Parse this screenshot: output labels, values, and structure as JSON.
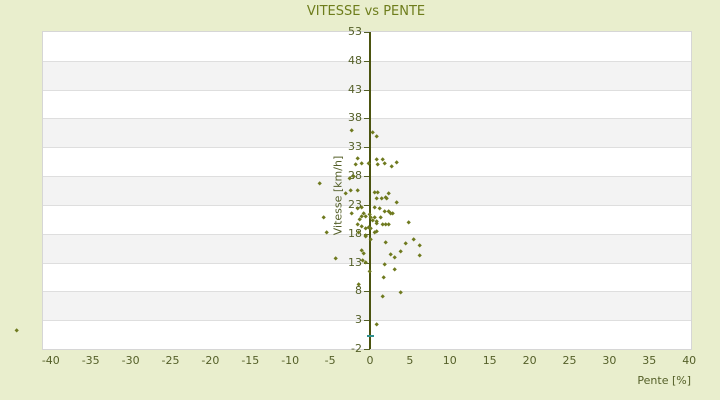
{
  "title": "VITESSE vs PENTE",
  "colors": {
    "page_background": "#e9eecd",
    "title": "#6e7d1c",
    "tick_labels": "#545f28",
    "points": "#6f7a1f",
    "axis_line": "#4b530f",
    "band_alternate": "#f3f3f3",
    "gridline": "#dedede",
    "plot_border": "#d6d6d6",
    "zero_tick": "#2f8f8f"
  },
  "chart_data": {
    "type": "scatter",
    "title": "VITESSE vs PENTE",
    "xlabel": "Pente [%]",
    "ylabel": "Vitesse [km/h]",
    "xlim": [
      -41,
      41
    ],
    "ylim": [
      -2,
      53
    ],
    "x_ticks": [
      -40,
      -35,
      -30,
      -25,
      -20,
      -15,
      -10,
      -5,
      0,
      5,
      10,
      15,
      20,
      25,
      30,
      35,
      40
    ],
    "y_ticks": [
      53,
      48,
      43,
      38,
      33,
      28,
      23,
      18,
      13,
      8,
      3,
      -2
    ],
    "grid": "horizontal alternating bands every 5 units",
    "legend_position": "none",
    "vertical_axis_at_x": 0,
    "zero_marker": {
      "x": 0,
      "y": 0.3
    },
    "series": [
      {
        "name": "vitesse-pente-points",
        "marker": "diamond",
        "points": [
          [
            -2.3,
            35.9
          ],
          [
            0.3,
            35.5
          ],
          [
            0.9,
            34.8
          ],
          [
            -1.6,
            31.0
          ],
          [
            -1.8,
            30.0
          ],
          [
            -1.0,
            30.1
          ],
          [
            -0.2,
            30.2
          ],
          [
            0.9,
            30.9
          ],
          [
            1.6,
            30.9
          ],
          [
            1.0,
            30.0
          ],
          [
            1.9,
            30.1
          ],
          [
            2.7,
            29.6
          ],
          [
            3.4,
            30.4
          ],
          [
            -6.3,
            26.6
          ],
          [
            -2.6,
            27.6
          ],
          [
            -2.1,
            27.9
          ],
          [
            -3.0,
            25.0
          ],
          [
            -2.4,
            25.4
          ],
          [
            -1.5,
            25.5
          ],
          [
            0.6,
            25.2
          ],
          [
            1.0,
            25.2
          ],
          [
            2.3,
            25.0
          ],
          [
            2.1,
            24.1
          ],
          [
            0.9,
            24.0
          ],
          [
            1.5,
            24.0
          ],
          [
            2.0,
            24.3
          ],
          [
            3.3,
            23.3
          ],
          [
            -1.5,
            22.4
          ],
          [
            -1.1,
            22.6
          ],
          [
            0.6,
            22.6
          ],
          [
            1.2,
            22.4
          ],
          [
            1.8,
            21.9
          ],
          [
            2.3,
            21.9
          ],
          [
            2.8,
            21.5
          ],
          [
            -2.3,
            21.5
          ],
          [
            -1.1,
            21.0
          ],
          [
            -0.8,
            21.4
          ],
          [
            -0.5,
            21.0
          ],
          [
            -0.1,
            21.3
          ],
          [
            0.3,
            20.3
          ],
          [
            0.1,
            20.7
          ],
          [
            0.6,
            20.8
          ],
          [
            0.9,
            20.1
          ],
          [
            1.3,
            20.7
          ],
          [
            2.6,
            21.4
          ],
          [
            -5.8,
            20.7
          ],
          [
            -1.3,
            20.5
          ],
          [
            2.0,
            19.6
          ],
          [
            4.8,
            19.9
          ],
          [
            -1.5,
            19.6
          ],
          [
            -1.1,
            19.3
          ],
          [
            -0.2,
            19.1
          ],
          [
            0.8,
            19.8
          ],
          [
            1.6,
            19.5
          ],
          [
            2.3,
            19.5
          ],
          [
            -5.4,
            18.1
          ],
          [
            -1.4,
            18.2
          ],
          [
            -0.5,
            18.9
          ],
          [
            0.1,
            18.8
          ],
          [
            -0.6,
            17.7
          ],
          [
            0.8,
            18.4
          ],
          [
            0.6,
            18.1
          ],
          [
            -0.5,
            17.4
          ],
          [
            0.1,
            17.0
          ],
          [
            5.5,
            17.0
          ],
          [
            2.0,
            16.4
          ],
          [
            4.5,
            16.2
          ],
          [
            6.2,
            16.0
          ],
          [
            -1.1,
            15.1
          ],
          [
            -0.8,
            14.6
          ],
          [
            2.6,
            14.4
          ],
          [
            3.9,
            14.8
          ],
          [
            6.2,
            14.2
          ],
          [
            3.1,
            13.9
          ],
          [
            -4.3,
            13.6
          ],
          [
            -0.9,
            13.4
          ],
          [
            -0.6,
            12.9
          ],
          [
            1.8,
            12.7
          ],
          [
            3.1,
            11.8
          ],
          [
            -0.1,
            11.4
          ],
          [
            1.7,
            10.4
          ],
          [
            -1.4,
            9.2
          ],
          [
            1.6,
            7.0
          ],
          [
            3.8,
            7.7
          ],
          [
            0.9,
            2.3
          ],
          [
            -44.3,
            1.1
          ]
        ]
      }
    ]
  }
}
